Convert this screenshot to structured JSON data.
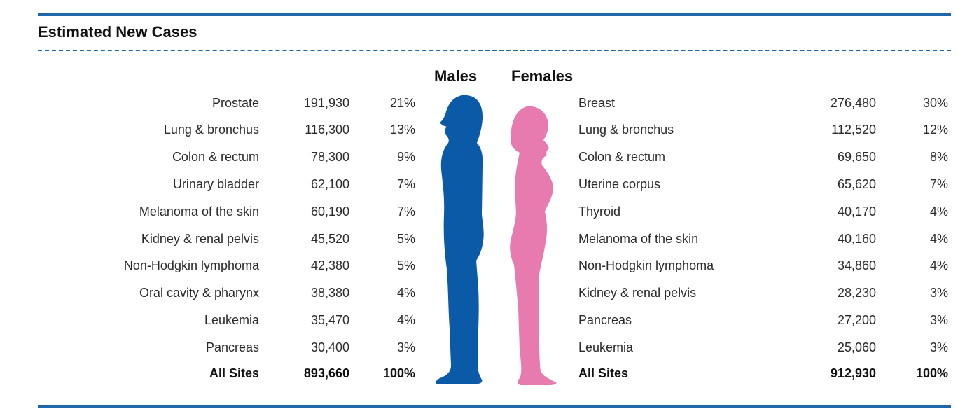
{
  "title": "Estimated New Cases",
  "males": {
    "heading": "Males",
    "rows": [
      {
        "site": "Prostate",
        "count": "191,930",
        "pct": "21%"
      },
      {
        "site": "Lung & bronchus",
        "count": "116,300",
        "pct": "13%"
      },
      {
        "site": "Colon & rectum",
        "count": "78,300",
        "pct": "9%"
      },
      {
        "site": "Urinary bladder",
        "count": "62,100",
        "pct": "7%"
      },
      {
        "site": "Melanoma of the skin",
        "count": "60,190",
        "pct": "7%"
      },
      {
        "site": "Kidney & renal pelvis",
        "count": "45,520",
        "pct": "5%"
      },
      {
        "site": "Non-Hodgkin lymphoma",
        "count": "42,380",
        "pct": "5%"
      },
      {
        "site": "Oral cavity & pharynx",
        "count": "38,380",
        "pct": "4%"
      },
      {
        "site": "Leukemia",
        "count": "35,470",
        "pct": "4%"
      },
      {
        "site": "Pancreas",
        "count": "30,400",
        "pct": "3%"
      }
    ],
    "total": {
      "site": "All Sites",
      "count": "893,660",
      "pct": "100%"
    }
  },
  "females": {
    "heading": "Females",
    "rows": [
      {
        "site": "Breast",
        "count": "276,480",
        "pct": "30%"
      },
      {
        "site": "Lung & bronchus",
        "count": "112,520",
        "pct": "12%"
      },
      {
        "site": "Colon & rectum",
        "count": "69,650",
        "pct": "8%"
      },
      {
        "site": "Uterine corpus",
        "count": "65,620",
        "pct": "7%"
      },
      {
        "site": "Thyroid",
        "count": "40,170",
        "pct": "4%"
      },
      {
        "site": "Melanoma of the skin",
        "count": "40,160",
        "pct": "4%"
      },
      {
        "site": "Non-Hodgkin lymphoma",
        "count": "34,860",
        "pct": "4%"
      },
      {
        "site": "Kidney & renal pelvis",
        "count": "28,230",
        "pct": "3%"
      },
      {
        "site": "Pancreas",
        "count": "27,200",
        "pct": "3%"
      },
      {
        "site": "Leukemia",
        "count": "25,060",
        "pct": "3%"
      }
    ],
    "total": {
      "site": "All Sites",
      "count": "912,930",
      "pct": "100%"
    }
  },
  "colors": {
    "rule": "#1f67a8",
    "male_silhouette": "#0a5aa8",
    "female_silhouette": "#e77aae"
  },
  "icons": {
    "male": "male-silhouette-icon",
    "female": "female-silhouette-icon"
  }
}
